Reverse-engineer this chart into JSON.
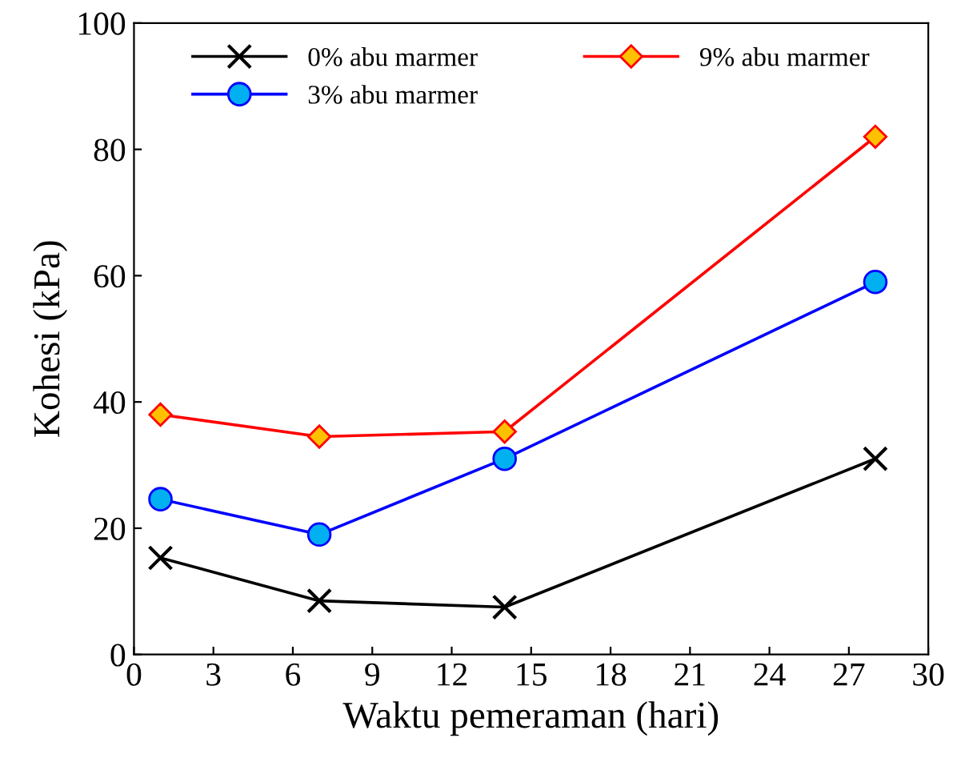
{
  "chart_data": {
    "type": "line",
    "xlabel": "Waktu pemeraman (hari)",
    "ylabel": "Kohesi (kPa)",
    "x": [
      1,
      7,
      14,
      28
    ],
    "series": [
      {
        "name": "0% abu marmer",
        "color": "#000000",
        "marker": "cross",
        "values": [
          15.3,
          8.5,
          7.5,
          31
        ]
      },
      {
        "name": "3% abu marmer",
        "color": "#0000ff",
        "marker": "circle",
        "values": [
          24.6,
          19,
          31,
          59
        ]
      },
      {
        "name": "9% abu marmer",
        "color": "#ff0000",
        "marker": "diamond",
        "values": [
          38,
          34.5,
          35.3,
          82
        ]
      }
    ],
    "xlim": [
      0,
      30
    ],
    "xticks": [
      0,
      3,
      6,
      9,
      12,
      15,
      18,
      21,
      24,
      27,
      30
    ],
    "ylim": [
      0,
      100
    ],
    "yticks": [
      0,
      20,
      40,
      60,
      80,
      100
    ],
    "grid": false,
    "legend": "top",
    "line_style": "solid"
  }
}
